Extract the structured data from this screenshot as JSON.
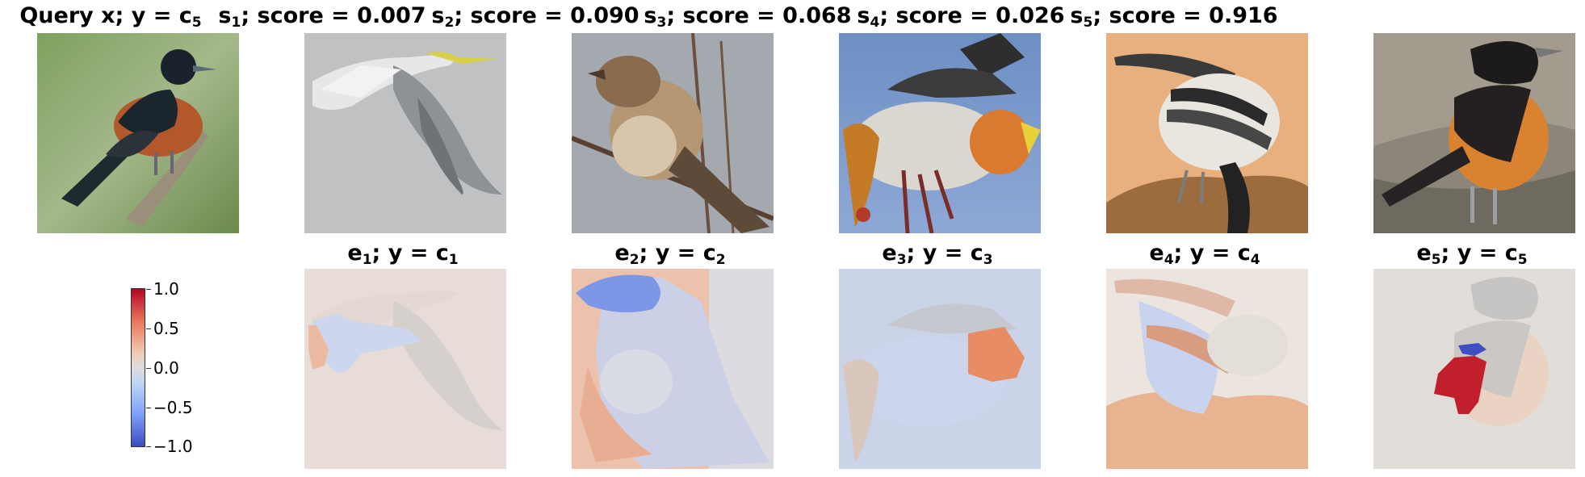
{
  "top_row": [
    {
      "label": "Query x; y = c",
      "sub": "5",
      "image": "query-bird-image"
    },
    {
      "label": "; score = 0.007",
      "prefix": "s",
      "sub": "1",
      "image": "seagull-image"
    },
    {
      "label": "; score = 0.090",
      "prefix": "s",
      "sub": "2",
      "image": "sparrow-image"
    },
    {
      "label": "; score = 0.068",
      "prefix": "s",
      "sub": "3",
      "image": "waxwing-image"
    },
    {
      "label": "; score = 0.026",
      "prefix": "s",
      "sub": "4",
      "image": "shrike-image"
    },
    {
      "label": "; score = 0.916",
      "prefix": "s",
      "sub": "5",
      "image": "oriole-image"
    }
  ],
  "bottom_row": [
    {
      "prefix": "e",
      "sub": "1",
      "label": "; y = c",
      "sub2": "1"
    },
    {
      "prefix": "e",
      "sub": "2",
      "label": "; y = c",
      "sub2": "2"
    },
    {
      "prefix": "e",
      "sub": "3",
      "label": "; y = c",
      "sub2": "3"
    },
    {
      "prefix": "e",
      "sub": "4",
      "label": "; y = c",
      "sub2": "4"
    },
    {
      "prefix": "e",
      "sub": "5",
      "label": "; y = c",
      "sub2": "5"
    }
  ],
  "colorbar": {
    "ticks": [
      "1.0",
      "0.5",
      "0.0",
      "−0.5",
      "−1.0"
    ],
    "colors": {
      "high": "#b40426",
      "mid": "#dddddd",
      "low": "#3b4cc0"
    }
  }
}
